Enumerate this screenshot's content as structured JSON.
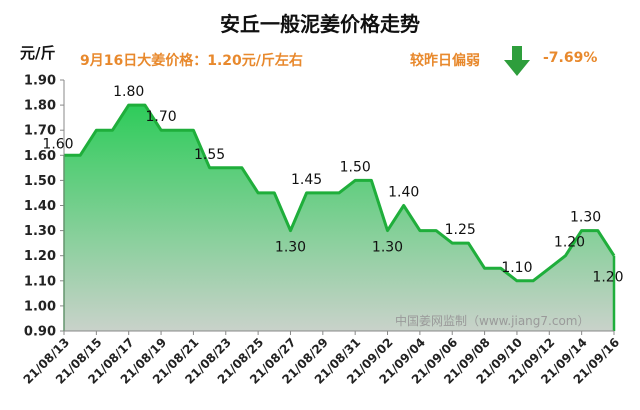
{
  "title": "安丘一般泥姜价格走势",
  "unit": "元/斤",
  "price_note": "9月16日大姜价格：1.20元/斤左右",
  "comparison": {
    "label": "较昨日偏弱",
    "value": "-7.69%",
    "arrow_icon": "down-arrow-icon",
    "arrow_color": "#2e9e3c"
  },
  "watermark": "中国姜网监制（www.jiang7.com）",
  "colors": {
    "line": "#1fae3b",
    "fill_top": "#2ecc5a",
    "fill_bottom": "#c9d2ca",
    "accent": "#e8892d"
  },
  "chart_data": {
    "type": "area",
    "title": "安丘一般泥姜价格走势",
    "ylabel": "元/斤",
    "xlabel": "",
    "ylim": [
      0.9,
      1.9
    ],
    "yticks": [
      "0.90",
      "1.00",
      "1.10",
      "1.20",
      "1.30",
      "1.40",
      "1.50",
      "1.60",
      "1.70",
      "1.80",
      "1.90"
    ],
    "grid": false,
    "x_tick_labels": [
      "21/08/13",
      "21/08/15",
      "21/08/17",
      "21/08/19",
      "21/08/21",
      "21/08/23",
      "21/08/25",
      "21/08/27",
      "21/08/29",
      "21/08/31",
      "21/09/02",
      "21/09/04",
      "21/09/06",
      "21/09/08",
      "21/09/10",
      "21/09/12",
      "21/09/14",
      "21/09/16"
    ],
    "points": [
      {
        "x": "21/08/13",
        "y": 1.6,
        "label": "1.60"
      },
      {
        "x": "21/08/14",
        "y": 1.6,
        "label": null
      },
      {
        "x": "21/08/15",
        "y": 1.7,
        "label": null
      },
      {
        "x": "21/08/16",
        "y": 1.7,
        "label": null
      },
      {
        "x": "21/08/17",
        "y": 1.8,
        "label": "1.80"
      },
      {
        "x": "21/08/18",
        "y": 1.8,
        "label": null
      },
      {
        "x": "21/08/19",
        "y": 1.7,
        "label": "1.70"
      },
      {
        "x": "21/08/20",
        "y": 1.7,
        "label": null
      },
      {
        "x": "21/08/21",
        "y": 1.7,
        "label": null
      },
      {
        "x": "21/08/22",
        "y": 1.55,
        "label": "1.55"
      },
      {
        "x": "21/08/23",
        "y": 1.55,
        "label": null
      },
      {
        "x": "21/08/24",
        "y": 1.55,
        "label": null
      },
      {
        "x": "21/08/25",
        "y": 1.45,
        "label": null
      },
      {
        "x": "21/08/26",
        "y": 1.45,
        "label": null
      },
      {
        "x": "21/08/27",
        "y": 1.3,
        "label": "1.30"
      },
      {
        "x": "21/08/28",
        "y": 1.45,
        "label": "1.45"
      },
      {
        "x": "21/08/29",
        "y": 1.45,
        "label": null
      },
      {
        "x": "21/08/30",
        "y": 1.45,
        "label": null
      },
      {
        "x": "21/08/31",
        "y": 1.5,
        "label": "1.50"
      },
      {
        "x": "21/09/01",
        "y": 1.5,
        "label": null
      },
      {
        "x": "21/09/02",
        "y": 1.3,
        "label": "1.30"
      },
      {
        "x": "21/09/03",
        "y": 1.4,
        "label": "1.40"
      },
      {
        "x": "21/09/04",
        "y": 1.3,
        "label": null
      },
      {
        "x": "21/09/05",
        "y": 1.3,
        "label": null
      },
      {
        "x": "21/09/06",
        "y": 1.25,
        "label": "1.25"
      },
      {
        "x": "21/09/07",
        "y": 1.25,
        "label": null
      },
      {
        "x": "21/09/08",
        "y": 1.15,
        "label": null
      },
      {
        "x": "21/09/09",
        "y": 1.15,
        "label": null
      },
      {
        "x": "21/09/10",
        "y": 1.1,
        "label": "1.10"
      },
      {
        "x": "21/09/11",
        "y": 1.1,
        "label": null
      },
      {
        "x": "21/09/12",
        "y": 1.15,
        "label": null
      },
      {
        "x": "21/09/13",
        "y": 1.2,
        "label": "1.20"
      },
      {
        "x": "21/09/14",
        "y": 1.3,
        "label": "1.30"
      },
      {
        "x": "21/09/15",
        "y": 1.3,
        "label": null
      },
      {
        "x": "21/09/16",
        "y": 1.2,
        "label": "1.20"
      }
    ]
  }
}
